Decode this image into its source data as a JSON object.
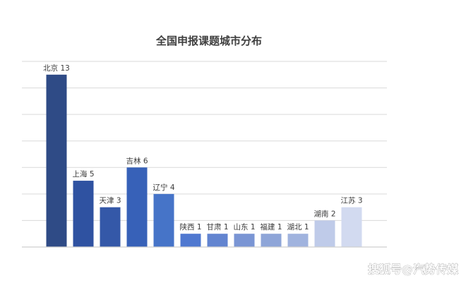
{
  "chart_data": {
    "type": "bar",
    "title": "全国申报课题城市分布",
    "xlabel": "",
    "ylabel": "",
    "ylim": [
      0,
      14
    ],
    "grid": true,
    "legend": "none",
    "categories": [
      "北京",
      "上海",
      "天津",
      "吉林",
      "辽宁",
      "陕西",
      "甘肃",
      "山东",
      "福建",
      "湖北",
      "湖南",
      "江苏"
    ],
    "values": [
      13,
      5,
      3,
      6,
      4,
      1,
      1,
      1,
      1,
      1,
      2,
      3
    ],
    "data_labels": [
      "北京 13",
      "上海 5",
      "天津 3",
      "吉林 6",
      "辽宁 4",
      "陕西 1",
      "甘肃 1",
      "山东 1",
      "福建 1",
      "湖北 1",
      "湖南 2",
      "江苏 3"
    ],
    "colors": [
      "#2f4b86",
      "#2f52a1",
      "#3458a8",
      "#3761b8",
      "#4674c8",
      "#4f78d0",
      "#6284d0",
      "#7a95d4",
      "#8ea5d8",
      "#a0b3de",
      "#bfcbe9",
      "#d2daf0"
    ]
  },
  "colors": {
    "gridline": "#d9d9d9",
    "axis": "#cfcfcf",
    "label_text": "#3b3b3b",
    "title_text": "#3f3f3f"
  },
  "watermark": {
    "text": "搜狐号@汽势传媒"
  }
}
